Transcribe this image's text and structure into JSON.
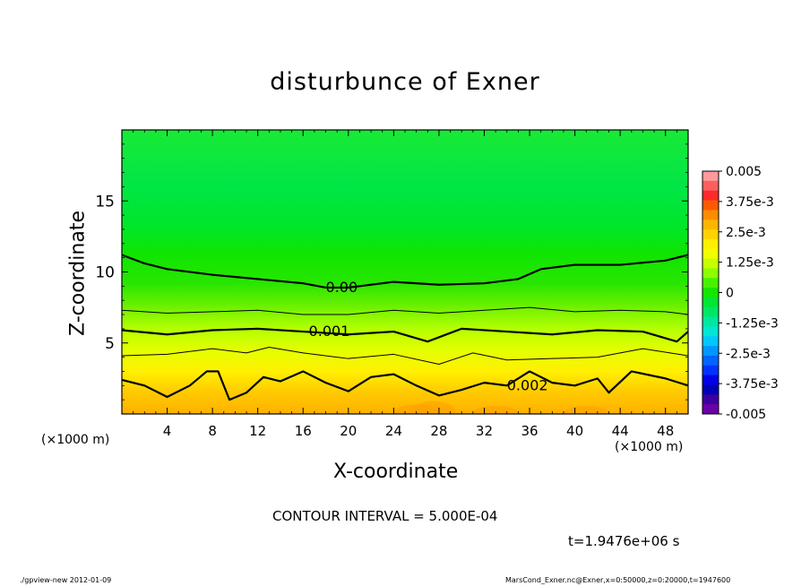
{
  "chart_data": {
    "type": "heatmap",
    "title": "disturbunce of Exner",
    "xlabel": "X-coordinate",
    "ylabel": "Z-coordinate",
    "x_unit_label": "(×1000 m)",
    "xlim": [
      0,
      50
    ],
    "ylim": [
      0,
      20
    ],
    "x_ticks": [
      4,
      8,
      12,
      16,
      20,
      24,
      28,
      32,
      36,
      40,
      44,
      48
    ],
    "y_ticks": [
      5,
      10,
      15
    ],
    "colorbar": {
      "min": -0.005,
      "max": 0.005,
      "tick_labels": [
        "0.005",
        "3.75e-3",
        "2.5e-3",
        "1.25e-3",
        "0",
        "-1.25e-3",
        "-2.5e-3",
        "-3.75e-3",
        "-0.005"
      ],
      "tick_values": [
        0.005,
        0.00375,
        0.0025,
        0.00125,
        0,
        -0.00125,
        -0.0025,
        -0.00375,
        -0.005
      ],
      "colors": [
        "#ff9a9a",
        "#ff5e5e",
        "#ff2a2a",
        "#ff5a00",
        "#ff8c00",
        "#ffb400",
        "#ffd200",
        "#ffee00",
        "#f0ff00",
        "#c8ff00",
        "#8cff00",
        "#46f200",
        "#14e600",
        "#00e632",
        "#00e664",
        "#00e6a0",
        "#00e6d2",
        "#00c8ff",
        "#0096ff",
        "#0064ff",
        "#0032ff",
        "#0000e6",
        "#0000b4",
        "#3c00a0",
        "#6a00a8"
      ]
    },
    "contour_interval": "5.000E-04",
    "contours": [
      {
        "level": 0.0,
        "label": "0.00",
        "label_at": [
          18,
          8.9
        ],
        "bold": true,
        "points": [
          [
            0,
            11.2
          ],
          [
            2,
            10.6
          ],
          [
            4,
            10.2
          ],
          [
            8,
            9.8
          ],
          [
            12,
            9.5
          ],
          [
            16,
            9.2
          ],
          [
            18,
            8.9
          ],
          [
            20,
            8.9
          ],
          [
            24,
            9.3
          ],
          [
            28,
            9.1
          ],
          [
            32,
            9.2
          ],
          [
            35,
            9.5
          ],
          [
            37,
            10.2
          ],
          [
            40,
            10.5
          ],
          [
            44,
            10.5
          ],
          [
            48,
            10.8
          ],
          [
            50,
            11.2
          ]
        ]
      },
      {
        "level": 0.0005,
        "label": "",
        "bold": false,
        "points": [
          [
            0,
            7.3
          ],
          [
            4,
            7.1
          ],
          [
            8,
            7.2
          ],
          [
            12,
            7.3
          ],
          [
            16,
            7.0
          ],
          [
            20,
            7.0
          ],
          [
            24,
            7.3
          ],
          [
            28,
            7.1
          ],
          [
            32,
            7.3
          ],
          [
            36,
            7.5
          ],
          [
            40,
            7.2
          ],
          [
            44,
            7.3
          ],
          [
            48,
            7.2
          ],
          [
            50,
            7.0
          ]
        ]
      },
      {
        "level": 0.001,
        "label": "0.001",
        "label_at": [
          16.5,
          5.8
        ],
        "bold": true,
        "points": [
          [
            0,
            5.9
          ],
          [
            4,
            5.6
          ],
          [
            8,
            5.9
          ],
          [
            12,
            6.0
          ],
          [
            16,
            5.8
          ],
          [
            20,
            5.6
          ],
          [
            24,
            5.8
          ],
          [
            27,
            5.1
          ],
          [
            30,
            6.0
          ],
          [
            34,
            5.8
          ],
          [
            38,
            5.6
          ],
          [
            42,
            5.9
          ],
          [
            46,
            5.8
          ],
          [
            49,
            5.1
          ],
          [
            50,
            5.8
          ]
        ]
      },
      {
        "level": 0.0015,
        "label": "",
        "bold": false,
        "points": [
          [
            0,
            4.1
          ],
          [
            4,
            4.2
          ],
          [
            8,
            4.6
          ],
          [
            11,
            4.3
          ],
          [
            13,
            4.7
          ],
          [
            16,
            4.3
          ],
          [
            20,
            3.9
          ],
          [
            24,
            4.2
          ],
          [
            28,
            3.5
          ],
          [
            31,
            4.3
          ],
          [
            34,
            3.8
          ],
          [
            38,
            3.9
          ],
          [
            42,
            4.0
          ],
          [
            46,
            4.6
          ],
          [
            50,
            4.1
          ]
        ]
      },
      {
        "level": 0.002,
        "label": "0.002",
        "label_at": [
          34,
          2.0
        ],
        "bold": true,
        "points": [
          [
            0,
            2.4
          ],
          [
            2,
            2.0
          ],
          [
            4,
            1.2
          ],
          [
            6,
            2.0
          ],
          [
            7.5,
            3.0
          ],
          [
            8.5,
            3.0
          ],
          [
            9.5,
            1.0
          ],
          [
            11,
            1.5
          ],
          [
            12.5,
            2.6
          ],
          [
            14,
            2.3
          ],
          [
            16,
            3.0
          ],
          [
            18,
            2.2
          ],
          [
            20,
            1.6
          ],
          [
            22,
            2.6
          ],
          [
            24,
            2.8
          ],
          [
            26,
            2.0
          ],
          [
            28,
            1.3
          ],
          [
            30,
            1.7
          ],
          [
            32,
            2.2
          ],
          [
            34,
            2.0
          ],
          [
            36,
            3.0
          ],
          [
            38,
            2.2
          ],
          [
            40,
            2.0
          ],
          [
            42,
            2.5
          ],
          [
            43,
            1.5
          ],
          [
            45,
            3.0
          ],
          [
            48,
            2.5
          ],
          [
            50,
            2.0
          ]
        ]
      }
    ]
  },
  "text": {
    "interval_label": "CONTOUR INTERVAL = 5.000E-04",
    "time_label": "t=1.9476e+06 s",
    "footer_left": "./gpview-new   2012-01-09",
    "footer_right": "MarsCond_Exner.nc@Exner,x=0:50000,z=0:20000,t=1947600"
  }
}
